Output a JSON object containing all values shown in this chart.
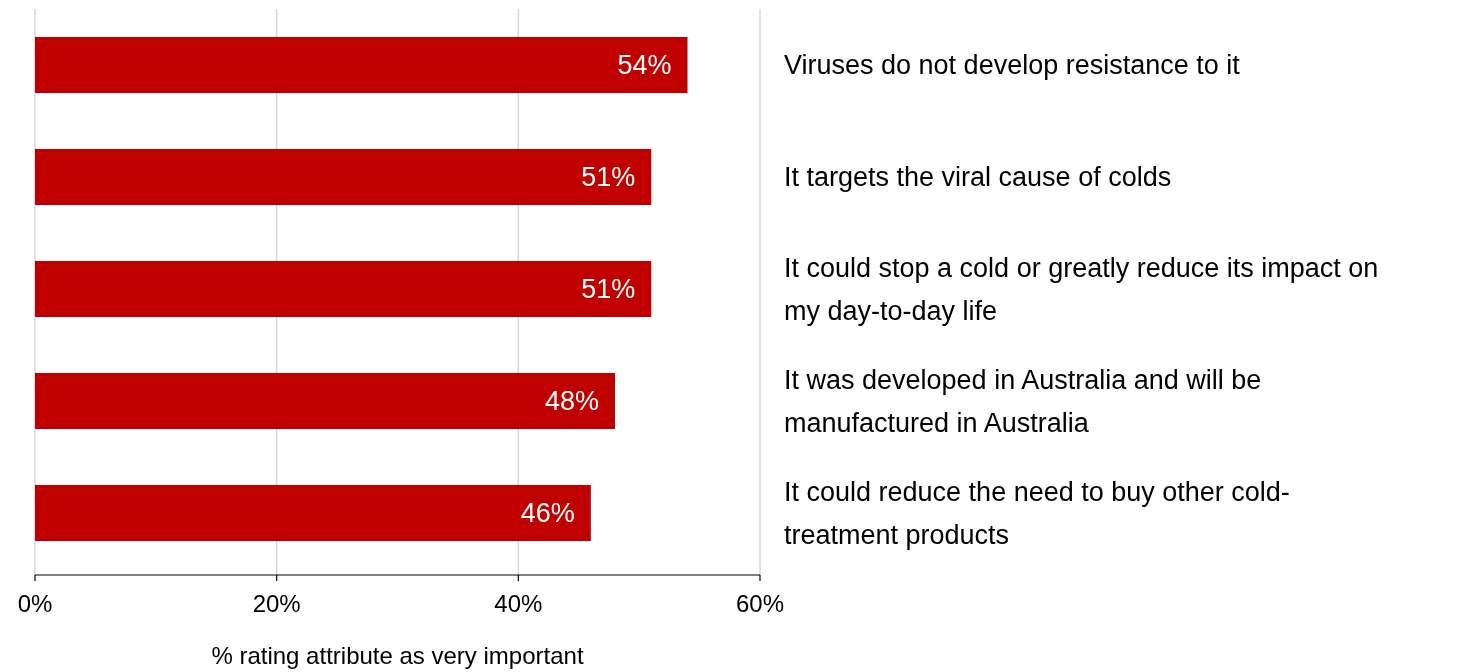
{
  "chart_data": {
    "type": "bar",
    "orientation": "horizontal",
    "xlabel": "% rating attribute as very important",
    "categories": [
      "Viruses do not develop resistance to it",
      "It targets the viral cause of colds",
      "It could stop a cold or greatly reduce its impact on my day-to-day life",
      "It was developed in Australia and will be manufactured in Australia",
      "It could reduce the need to buy other cold-treatment products"
    ],
    "values": [
      54,
      51,
      51,
      48,
      46
    ],
    "value_labels": [
      "54%",
      "51%",
      "51%",
      "48%",
      "46%"
    ],
    "color": "#c00000",
    "xlim": [
      0,
      60
    ],
    "xticks": [
      {
        "value": 0,
        "label": "0%"
      },
      {
        "value": 20,
        "label": "20%"
      },
      {
        "value": 40,
        "label": "40%"
      },
      {
        "value": 60,
        "label": "60%"
      }
    ],
    "grid": "x"
  }
}
